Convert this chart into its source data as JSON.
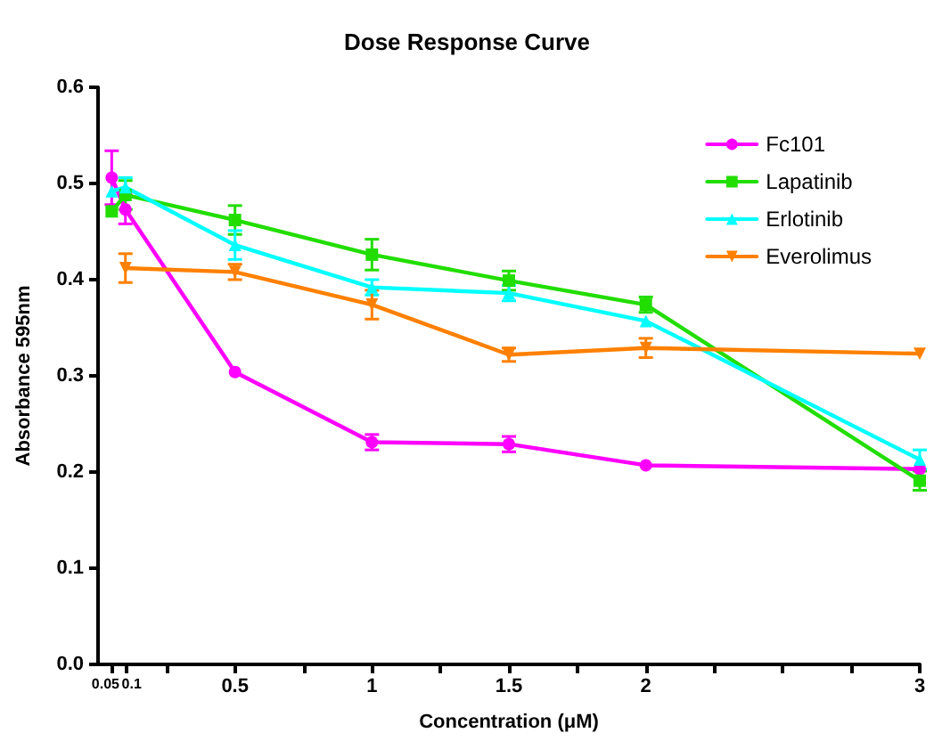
{
  "chart_data": {
    "type": "line",
    "title": "Dose Response Curve",
    "xlabel": "Concentration (μM)",
    "ylabel": "Absorbance 595nm",
    "x": [
      0.05,
      0.1,
      0.5,
      1,
      1.5,
      2,
      3
    ],
    "series": [
      {
        "name": "Fc101",
        "color": "#ff00ff",
        "marker": "circle",
        "values": [
          0.506,
          0.473,
          0.304,
          0.231,
          0.229,
          0.207,
          0.203
        ],
        "errors": [
          0.028,
          0.015,
          null,
          0.008,
          0.008,
          null,
          null
        ]
      },
      {
        "name": "Lapatinib",
        "color": "#22dd00",
        "marker": "square",
        "values": [
          0.471,
          0.488,
          0.462,
          0.426,
          0.399,
          0.374,
          0.191
        ],
        "errors": [
          null,
          0.015,
          0.015,
          0.016,
          0.01,
          0.008,
          0.01
        ]
      },
      {
        "name": "Erlotinib",
        "color": "#00ffff",
        "marker": "triangle",
        "values": [
          0.492,
          0.496,
          0.436,
          0.392,
          0.386,
          0.357,
          0.213
        ],
        "errors": [
          null,
          0.01,
          0.015,
          0.008,
          0.008,
          null,
          0.01
        ]
      },
      {
        "name": "Everolimus",
        "color": "#ff8000",
        "marker": "triangle-down",
        "values": [
          null,
          0.412,
          0.408,
          0.374,
          0.322,
          0.329,
          0.323
        ],
        "errors": [
          null,
          0.015,
          0.008,
          0.015,
          0.007,
          0.01,
          null
        ]
      }
    ],
    "xlim": [
      0,
      3
    ],
    "xticks": [
      0.05,
      0.1,
      {
        "value": 0.25,
        "label": null
      },
      0.5,
      {
        "value": 0.75,
        "label": null
      },
      1,
      {
        "value": 1.25,
        "label": null
      },
      1.5,
      {
        "value": 1.75,
        "label": null
      },
      2,
      {
        "value": 2.25,
        "label": null
      },
      {
        "value": 2.5,
        "label": null
      },
      {
        "value": 2.75,
        "label": null
      },
      3
    ],
    "ylim": [
      0,
      0.6
    ],
    "yticks": [
      {
        "value": 0,
        "label": "0.0"
      },
      0.1,
      0.2,
      0.3,
      0.4,
      0.5,
      0.6
    ],
    "grid": false,
    "legend": "top right",
    "line_style": "solid"
  }
}
